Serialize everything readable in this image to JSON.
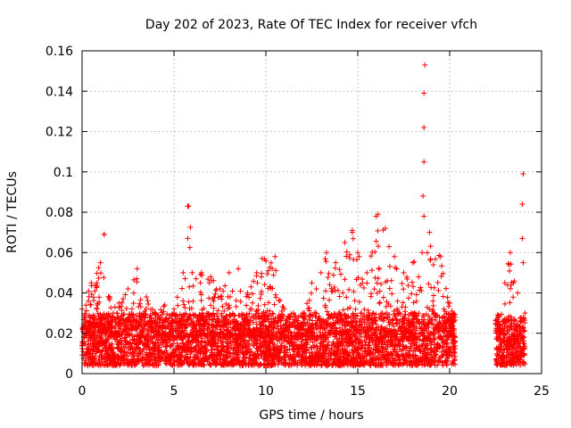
{
  "chart_data": {
    "type": "scatter",
    "title": "Day 202 of 2023, Rate Of TEC Index for receiver vfch",
    "xlabel": "GPS time / hours",
    "ylabel": "ROTI / TECUs",
    "xlim": [
      0,
      25
    ],
    "ylim": [
      0,
      0.16
    ],
    "x_ticks": [
      "0",
      "5",
      "10",
      "15",
      "20",
      "25"
    ],
    "y_ticks": [
      "0",
      "0.02",
      "0.04",
      "0.06",
      "0.08",
      "0.1",
      "0.12",
      "0.14",
      "0.16"
    ],
    "grid": true,
    "marker": "+",
    "color": "#ff0000",
    "segments": [
      {
        "x_start": 0.0,
        "x_end": 20.3,
        "baseline_low": 0.004,
        "baseline_high": 0.03
      },
      {
        "x_start": 22.5,
        "x_end": 24.1,
        "baseline_low": 0.004,
        "baseline_high": 0.028
      }
    ],
    "envelope": [
      {
        "x": 0.0,
        "y": 0.032
      },
      {
        "x": 0.5,
        "y": 0.045
      },
      {
        "x": 1.0,
        "y": 0.055
      },
      {
        "x": 1.2,
        "y": 0.069
      },
      {
        "x": 1.5,
        "y": 0.038
      },
      {
        "x": 2.0,
        "y": 0.035
      },
      {
        "x": 2.5,
        "y": 0.042
      },
      {
        "x": 3.0,
        "y": 0.052
      },
      {
        "x": 3.5,
        "y": 0.038
      },
      {
        "x": 4.0,
        "y": 0.03
      },
      {
        "x": 4.5,
        "y": 0.034
      },
      {
        "x": 5.0,
        "y": 0.032
      },
      {
        "x": 5.5,
        "y": 0.05
      },
      {
        "x": 5.8,
        "y": 0.083
      },
      {
        "x": 6.2,
        "y": 0.047
      },
      {
        "x": 6.5,
        "y": 0.05
      },
      {
        "x": 7.0,
        "y": 0.048
      },
      {
        "x": 7.5,
        "y": 0.042
      },
      {
        "x": 8.0,
        "y": 0.05
      },
      {
        "x": 8.5,
        "y": 0.052
      },
      {
        "x": 9.0,
        "y": 0.04
      },
      {
        "x": 9.5,
        "y": 0.05
      },
      {
        "x": 9.8,
        "y": 0.057
      },
      {
        "x": 10.5,
        "y": 0.058
      },
      {
        "x": 11.0,
        "y": 0.032
      },
      {
        "x": 11.5,
        "y": 0.03
      },
      {
        "x": 12.0,
        "y": 0.03
      },
      {
        "x": 12.5,
        "y": 0.045
      },
      {
        "x": 13.0,
        "y": 0.05
      },
      {
        "x": 13.3,
        "y": 0.06
      },
      {
        "x": 13.8,
        "y": 0.055
      },
      {
        "x": 14.3,
        "y": 0.065
      },
      {
        "x": 14.7,
        "y": 0.07
      },
      {
        "x": 15.0,
        "y": 0.06
      },
      {
        "x": 15.5,
        "y": 0.05
      },
      {
        "x": 16.0,
        "y": 0.078
      },
      {
        "x": 16.5,
        "y": 0.072
      },
      {
        "x": 17.0,
        "y": 0.058
      },
      {
        "x": 17.5,
        "y": 0.05
      },
      {
        "x": 18.0,
        "y": 0.055
      },
      {
        "x": 18.5,
        "y": 0.06
      },
      {
        "x": 18.9,
        "y": 0.07
      },
      {
        "x": 19.5,
        "y": 0.058
      },
      {
        "x": 20.0,
        "y": 0.035
      },
      {
        "x": 20.3,
        "y": 0.028
      },
      {
        "x": 22.5,
        "y": 0.025
      },
      {
        "x": 23.0,
        "y": 0.045
      },
      {
        "x": 23.3,
        "y": 0.06
      },
      {
        "x": 23.7,
        "y": 0.04
      },
      {
        "x": 24.0,
        "y": 0.055
      },
      {
        "x": 24.1,
        "y": 0.03
      }
    ],
    "outliers": [
      {
        "x": 18.65,
        "y": 0.153
      },
      {
        "x": 18.6,
        "y": 0.139
      },
      {
        "x": 18.6,
        "y": 0.122
      },
      {
        "x": 18.6,
        "y": 0.105
      },
      {
        "x": 18.55,
        "y": 0.088
      },
      {
        "x": 18.6,
        "y": 0.078
      },
      {
        "x": 24.0,
        "y": 0.099
      },
      {
        "x": 23.95,
        "y": 0.084
      },
      {
        "x": 23.95,
        "y": 0.067
      },
      {
        "x": 5.75,
        "y": 0.083
      },
      {
        "x": 5.75,
        "y": 0.067
      },
      {
        "x": 16.1,
        "y": 0.079
      },
      {
        "x": 1.2,
        "y": 0.069
      },
      {
        "x": 14.7,
        "y": 0.071
      },
      {
        "x": 10.0,
        "y": 0.003
      },
      {
        "x": 10.1,
        "y": 0.004
      }
    ]
  }
}
